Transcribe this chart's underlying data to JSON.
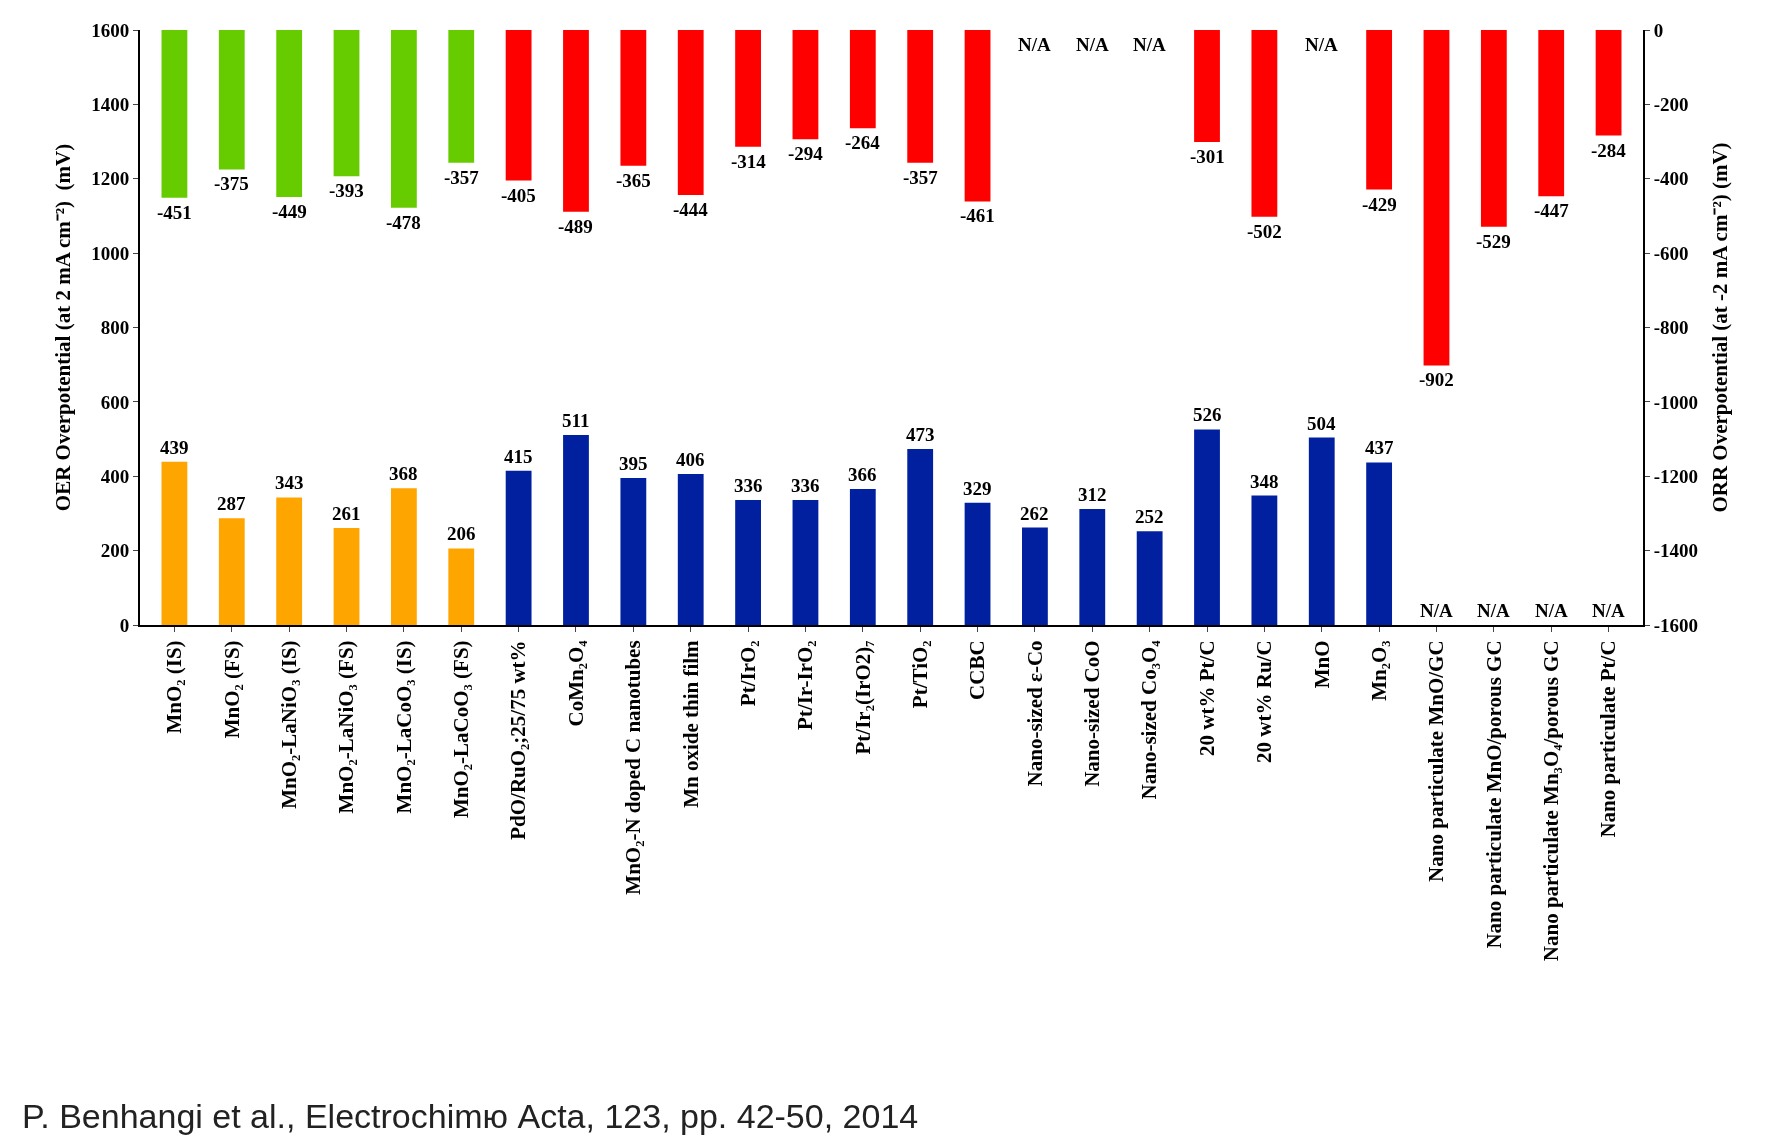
{
  "chart_data": {
    "type": "bar",
    "ylabel": "OER Overpotential (at 2 mA cm⁻²)  (mV)",
    "y2label": "ORR Overpotential (at -2 mA cm⁻²) (mV)",
    "categories": [
      "MnO₂ (IS)",
      "MnO₂ (FS)",
      "MnO₂-LaNiO₃ (IS)",
      "MnO₂-LaNiO₃ (FS)",
      "MnO₂-LaCoO₃ (IS)",
      "MnO₂-LaCoO₃ (FS)",
      "PdO/RuO₂;25/75 wt%",
      "CoMn₂O₄",
      "MnO₂-N doped C nanotubes",
      "Mn oxide thin film",
      "Pt/IrO₂",
      "Pt/Ir-IrO₂",
      "Pt/Ir₂(IrO2)₇",
      "Pt/TiO₂",
      "CCBC",
      "Nano-sized ε-Co",
      "Nano-sized CoO",
      "Nano-sized Co₃O₄",
      "20 wt% Pt/C",
      "20 wt% Ru/C",
      "MnO",
      "Mn₂O₃",
      "Nano particulate MnO/GC",
      "Nano particulate MnO/porous GC",
      "Nano particulate Mn₃O₄/porous GC",
      "Nano particulate Pt/C"
    ],
    "series": [
      {
        "colors": [
          "#ffa500",
          "#ffa500",
          "#ffa500",
          "#ffa500",
          "#ffa500",
          "#ffa500",
          "#0020a0",
          "#0020a0",
          "#0020a0",
          "#0020a0",
          "#0020a0",
          "#0020a0",
          "#0020a0",
          "#0020a0",
          "#0020a0",
          "#0020a0",
          "#0020a0",
          "#0020a0",
          "#0020a0",
          "#0020a0",
          "#0020a0",
          "#0020a0",
          "#0020a0",
          "#0020a0",
          "#0020a0",
          "#0020a0"
        ],
        "values": [
          439,
          287,
          343,
          261,
          368,
          206,
          415,
          511,
          395,
          406,
          336,
          336,
          366,
          473,
          329,
          262,
          312,
          252,
          526,
          348,
          504,
          437,
          null,
          null,
          null,
          null
        ],
        "value_labels": [
          "439",
          "287",
          "343",
          "261",
          "368",
          "206",
          "415",
          "511",
          "395",
          "406",
          "336",
          "336",
          "366",
          "473",
          "329",
          "262",
          "312",
          "252",
          "526",
          "348",
          "504",
          "437",
          "N/A",
          "N/A",
          "N/A",
          "N/A"
        ]
      },
      {
        "axis": "y2",
        "colors": [
          "#66cc00",
          "#66cc00",
          "#66cc00",
          "#66cc00",
          "#66cc00",
          "#66cc00",
          "#ff0000",
          "#ff0000",
          "#ff0000",
          "#ff0000",
          "#ff0000",
          "#ff0000",
          "#ff0000",
          "#ff0000",
          "#ff0000",
          "#ff0000",
          "#ff0000",
          "#ff0000",
          "#ff0000",
          "#ff0000",
          "#ff0000",
          "#ff0000",
          "#ff0000",
          "#ff0000",
          "#ff0000",
          "#ff0000"
        ],
        "values": [
          -451,
          -375,
          -449,
          -393,
          -478,
          -357,
          -405,
          -489,
          -365,
          -444,
          -314,
          -294,
          -264,
          -357,
          -461,
          null,
          null,
          null,
          -301,
          -502,
          null,
          -429,
          -902,
          -529,
          -447,
          -284
        ],
        "value_labels": [
          "-451",
          "-375",
          "-449",
          "-393",
          "-478",
          "-357",
          "-405",
          "-489",
          "-365",
          "-444",
          "-314",
          "-294",
          "-264",
          "-357",
          "-461",
          "N/A",
          "N/A",
          "N/A",
          "-301",
          "-502",
          "N/A",
          "-429",
          "-902",
          "-529",
          "-447",
          "-284"
        ]
      }
    ],
    "ylim": [
      0,
      1600
    ],
    "yticks": [
      0,
      200,
      400,
      600,
      800,
      1000,
      1200,
      1400,
      1600
    ],
    "y2lim": [
      -1600,
      0
    ],
    "y2ticks": [
      -1600,
      -1400,
      -1200,
      -1000,
      -800,
      -600,
      -400,
      -200,
      0
    ],
    "stacked": true,
    "annotations": [
      "P. Benhangi et al., Electrochimю Acta, 123, pp. 42-50, 2014"
    ]
  }
}
